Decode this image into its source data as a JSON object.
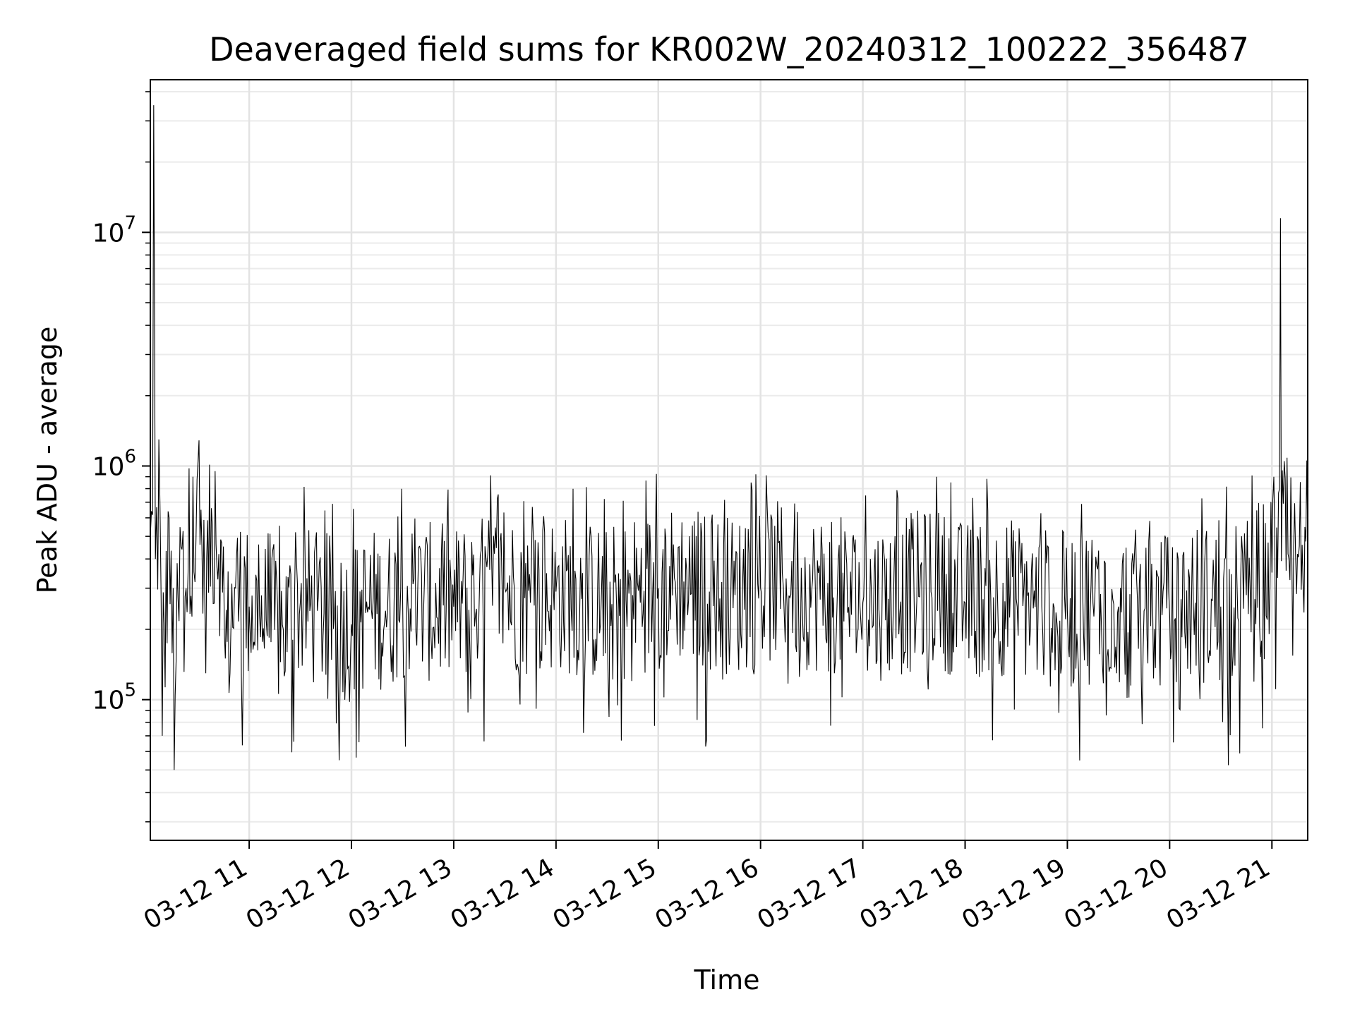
{
  "chart_data": {
    "type": "line",
    "title": "Deaveraged field sums for KR002W_20240312_100222_356487",
    "xlabel": "Time",
    "ylabel": "Peak ADU - average",
    "yscale": "log",
    "ylim": [
      25000,
      45000000
    ],
    "xlim": [
      "03-12 10:02",
      "03-12 21:21"
    ],
    "x_ticks": [
      {
        "t": "03-12 11:00",
        "label": "03-12 11"
      },
      {
        "t": "03-12 12:00",
        "label": "03-12 12"
      },
      {
        "t": "03-12 13:00",
        "label": "03-12 13"
      },
      {
        "t": "03-12 14:00",
        "label": "03-12 14"
      },
      {
        "t": "03-12 15:00",
        "label": "03-12 15"
      },
      {
        "t": "03-12 16:00",
        "label": "03-12 16"
      },
      {
        "t": "03-12 17:00",
        "label": "03-12 17"
      },
      {
        "t": "03-12 18:00",
        "label": "03-12 18"
      },
      {
        "t": "03-12 19:00",
        "label": "03-12 19"
      },
      {
        "t": "03-12 20:00",
        "label": "03-12 20"
      },
      {
        "t": "03-12 21:00",
        "label": "03-12 21"
      }
    ],
    "y_ticks": [
      {
        "value": 100000,
        "base": "10",
        "exp": "5"
      },
      {
        "value": 1000000,
        "base": "10",
        "exp": "6"
      },
      {
        "value": 10000000,
        "base": "10",
        "exp": "7"
      }
    ],
    "grid": true,
    "line_color": "#000000",
    "series": [
      {
        "x": [
          "03-12 10:02",
          "03-12 10:04",
          "03-12 10:05",
          "03-12 10:07",
          "03-12 10:09",
          "03-12 10:13",
          "03-12 10:16",
          "03-12 10:20",
          "03-12 10:23",
          "03-12 10:27",
          "03-12 10:30",
          "03-12 10:34",
          "03-12 10:40",
          "03-12 10:46",
          "03-12 10:52",
          "03-12 11:00",
          "03-12 11:10",
          "03-12 11:20",
          "03-12 11:30",
          "03-12 11:40",
          "03-12 11:50",
          "03-12 12:00",
          "03-12 12:10",
          "03-12 12:20",
          "03-12 12:30",
          "03-12 12:45",
          "03-12 13:00",
          "03-12 13:15",
          "03-12 13:30",
          "03-12 13:45",
          "03-12 14:00",
          "03-12 14:15",
          "03-12 14:30",
          "03-12 14:45",
          "03-12 15:00",
          "03-12 15:15",
          "03-12 15:30",
          "03-12 15:45",
          "03-12 16:00",
          "03-12 16:15",
          "03-12 16:30",
          "03-12 16:45",
          "03-12 17:00",
          "03-12 17:15",
          "03-12 17:30",
          "03-12 17:45",
          "03-12 18:00",
          "03-12 18:15",
          "03-12 18:30",
          "03-12 18:45",
          "03-12 19:00",
          "03-12 19:15",
          "03-12 19:30",
          "03-12 19:45",
          "03-12 20:00",
          "03-12 20:15",
          "03-12 20:30",
          "03-12 20:45",
          "03-12 21:00",
          "03-12 21:05",
          "03-12 21:10",
          "03-12 21:15",
          "03-12 21:21"
        ],
        "y": [
          500000,
          35000000,
          400000,
          1300000,
          70000,
          600000,
          50000,
          450000,
          300000,
          900000,
          1050000,
          250000,
          950000,
          150000,
          300000,
          250000,
          220000,
          200000,
          260000,
          240000,
          230000,
          210000,
          250000,
          240000,
          270000,
          260000,
          250000,
          280000,
          300000,
          260000,
          290000,
          270000,
          250000,
          280000,
          300000,
          320000,
          290000,
          280000,
          300000,
          330000,
          290000,
          280000,
          260000,
          270000,
          290000,
          300000,
          260000,
          280000,
          270000,
          250000,
          240000,
          260000,
          250000,
          240000,
          230000,
          260000,
          250000,
          280000,
          350000,
          11500000,
          400000,
          420000,
          500000
        ]
      }
    ]
  }
}
